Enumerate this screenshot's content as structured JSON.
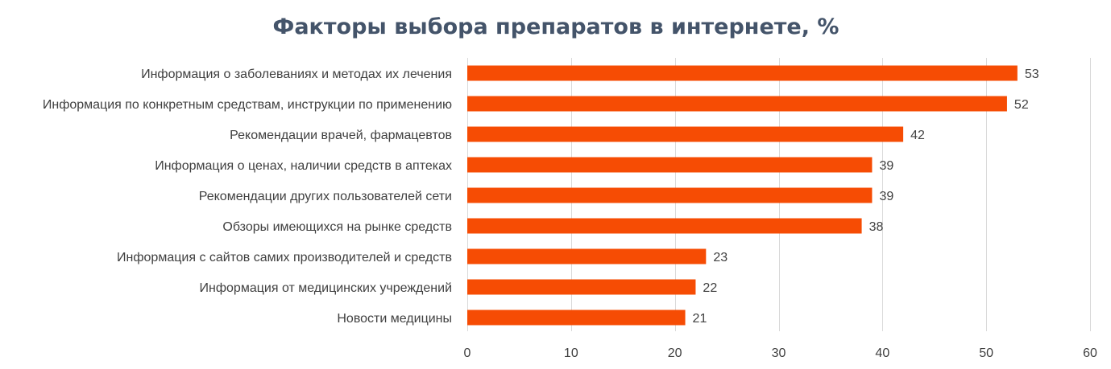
{
  "chart_data": {
    "type": "bar",
    "orientation": "horizontal",
    "title": "Факторы выбора препаратов в интернете, %",
    "xlabel": "",
    "ylabel": "",
    "categories": [
      "Информация о заболеваниях и методах их лечения",
      "Информация по конкретным средствам, инструкции по применению",
      "Рекомендации врачей, фармацевтов",
      "Информация о ценах, наличии средств в аптеках",
      "Рекомендации других пользователей сети",
      "Обзоры имеющихся на рынке средств",
      "Информация с сайтов самих производителей и средств",
      "Информация от медицинских учреждений",
      "Новости медицины"
    ],
    "values": [
      53,
      52,
      42,
      39,
      39,
      38,
      23,
      22,
      21
    ],
    "value_labels": [
      "53",
      "52",
      "42",
      "39",
      "39",
      "38",
      "23",
      "22",
      "21"
    ],
    "xlim": [
      0,
      60
    ],
    "xticks": [
      0,
      10,
      20,
      30,
      40,
      50,
      60
    ],
    "xtick_labels": [
      "0",
      "10",
      "20",
      "30",
      "40",
      "50",
      "60"
    ],
    "grid": "vertical",
    "legend": "none",
    "colors": {
      "bar": "#f64c04",
      "title": "#44546a",
      "text": "#404040",
      "grid": "#d9d9d9"
    }
  }
}
